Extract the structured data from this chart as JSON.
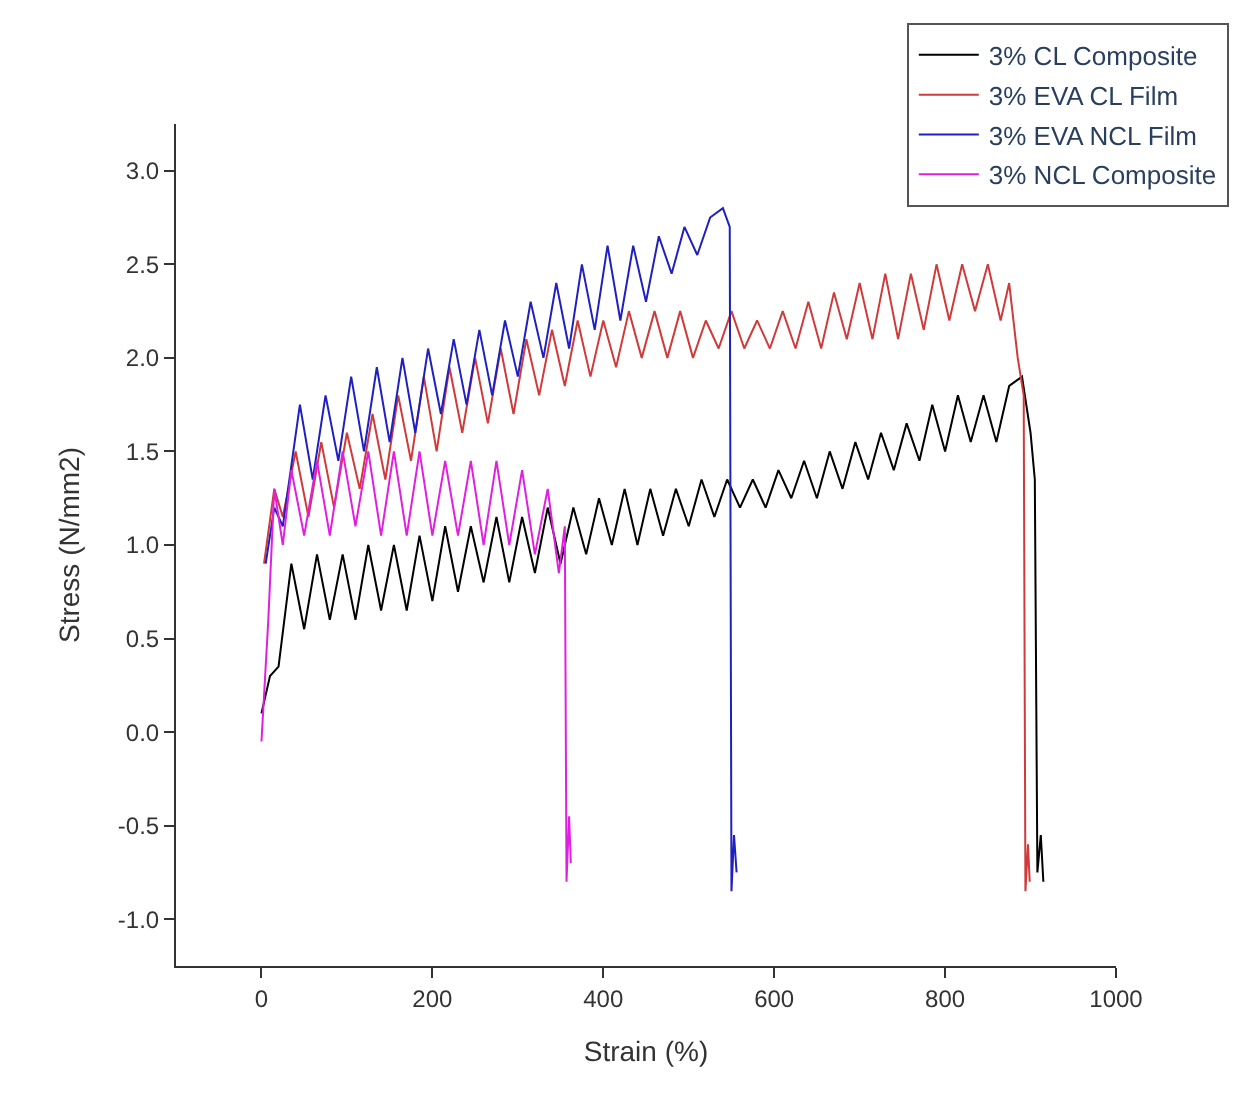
{
  "chart_data": {
    "type": "line",
    "xlabel": "Strain (%)",
    "ylabel": "Stress (N/mm2)",
    "xlim": [
      -100,
      1000
    ],
    "ylim": [
      -1.25,
      3.25
    ],
    "xticks": [
      0,
      200,
      400,
      600,
      800,
      1000
    ],
    "yticks": [
      {
        "value": -1.0,
        "label": "-1.0"
      },
      {
        "value": -0.5,
        "label": "-0.5"
      },
      {
        "value": 0,
        "label": "0.0"
      },
      {
        "value": 0.5,
        "label": "0.5"
      },
      {
        "value": 1.0,
        "label": "1.0"
      },
      {
        "value": 1.5,
        "label": "1.5"
      },
      {
        "value": 2.0,
        "label": "2.0"
      },
      {
        "value": 2.5,
        "label": "2.5"
      },
      {
        "value": 3.0,
        "label": "3.0"
      }
    ],
    "legend": "top right",
    "marker": "none",
    "line_style": "solid",
    "series": [
      {
        "name": "3% CL Composite",
        "color": "#000000",
        "x": [
          0,
          10,
          20,
          35,
          50,
          65,
          80,
          95,
          110,
          125,
          140,
          155,
          170,
          185,
          200,
          215,
          230,
          245,
          260,
          275,
          290,
          305,
          320,
          335,
          350,
          365,
          380,
          395,
          410,
          425,
          440,
          455,
          470,
          485,
          500,
          515,
          530,
          545,
          560,
          575,
          590,
          605,
          620,
          635,
          650,
          665,
          680,
          695,
          710,
          725,
          740,
          755,
          770,
          785,
          800,
          815,
          830,
          845,
          860,
          875,
          890,
          900,
          905,
          908,
          912,
          915
        ],
        "values": [
          0.1,
          0.3,
          0.35,
          0.9,
          0.55,
          0.95,
          0.6,
          0.95,
          0.6,
          1.0,
          0.65,
          1.0,
          0.65,
          1.05,
          0.7,
          1.1,
          0.75,
          1.1,
          0.8,
          1.15,
          0.8,
          1.15,
          0.85,
          1.2,
          0.9,
          1.2,
          0.95,
          1.25,
          1.0,
          1.3,
          1.0,
          1.3,
          1.05,
          1.3,
          1.1,
          1.35,
          1.15,
          1.35,
          1.2,
          1.35,
          1.2,
          1.4,
          1.25,
          1.45,
          1.25,
          1.5,
          1.3,
          1.55,
          1.35,
          1.6,
          1.4,
          1.65,
          1.45,
          1.75,
          1.5,
          1.8,
          1.55,
          1.8,
          1.55,
          1.85,
          1.9,
          1.6,
          1.35,
          -0.75,
          -0.55,
          -0.8
        ]
      },
      {
        "name": "3% EVA CL Film",
        "color": "#d03a3a",
        "x": [
          3,
          15,
          25,
          40,
          55,
          70,
          85,
          100,
          115,
          130,
          145,
          160,
          175,
          190,
          205,
          220,
          235,
          250,
          265,
          280,
          295,
          310,
          325,
          340,
          355,
          370,
          385,
          400,
          415,
          430,
          445,
          460,
          475,
          490,
          505,
          520,
          535,
          550,
          565,
          580,
          595,
          610,
          625,
          640,
          655,
          670,
          685,
          700,
          715,
          730,
          745,
          760,
          775,
          790,
          805,
          820,
          835,
          850,
          865,
          875,
          885,
          892,
          894,
          897,
          899
        ],
        "values": [
          0.9,
          1.3,
          1.15,
          1.5,
          1.15,
          1.55,
          1.2,
          1.6,
          1.3,
          1.7,
          1.35,
          1.8,
          1.45,
          1.9,
          1.5,
          1.95,
          1.6,
          2.0,
          1.65,
          2.05,
          1.7,
          2.1,
          1.8,
          2.15,
          1.85,
          2.2,
          1.9,
          2.2,
          1.95,
          2.25,
          2.0,
          2.25,
          2.0,
          2.25,
          2.0,
          2.2,
          2.05,
          2.25,
          2.05,
          2.2,
          2.05,
          2.25,
          2.05,
          2.3,
          2.05,
          2.35,
          2.1,
          2.4,
          2.1,
          2.45,
          2.1,
          2.45,
          2.15,
          2.5,
          2.2,
          2.5,
          2.25,
          2.5,
          2.2,
          2.4,
          2.0,
          1.8,
          -0.85,
          -0.6,
          -0.8
        ]
      },
      {
        "name": "3% EVA NCL Film",
        "color": "#2020c0",
        "x": [
          5,
          15,
          25,
          45,
          60,
          75,
          90,
          105,
          120,
          135,
          150,
          165,
          180,
          195,
          210,
          225,
          240,
          255,
          270,
          285,
          300,
          315,
          330,
          345,
          360,
          375,
          390,
          405,
          420,
          435,
          450,
          465,
          480,
          495,
          510,
          525,
          540,
          548,
          550,
          553,
          556
        ],
        "values": [
          0.9,
          1.2,
          1.1,
          1.75,
          1.35,
          1.8,
          1.45,
          1.9,
          1.5,
          1.95,
          1.55,
          2.0,
          1.6,
          2.05,
          1.7,
          2.1,
          1.75,
          2.15,
          1.8,
          2.2,
          1.9,
          2.3,
          2.0,
          2.4,
          2.05,
          2.5,
          2.15,
          2.6,
          2.2,
          2.6,
          2.3,
          2.65,
          2.45,
          2.7,
          2.55,
          2.75,
          2.8,
          2.7,
          -0.85,
          -0.55,
          -0.75
        ]
      },
      {
        "name": "3% NCL Composite",
        "color": "#e020e0",
        "x": [
          0,
          8,
          15,
          25,
          35,
          50,
          65,
          80,
          95,
          110,
          125,
          140,
          155,
          170,
          185,
          200,
          215,
          230,
          245,
          260,
          275,
          290,
          305,
          320,
          335,
          348,
          355,
          357,
          360,
          362
        ],
        "values": [
          -0.05,
          0.6,
          1.3,
          1.0,
          1.4,
          1.05,
          1.45,
          1.05,
          1.5,
          1.1,
          1.5,
          1.05,
          1.5,
          1.05,
          1.5,
          1.05,
          1.45,
          1.05,
          1.45,
          1.0,
          1.45,
          1.0,
          1.4,
          0.95,
          1.3,
          0.85,
          1.1,
          -0.8,
          -0.45,
          -0.7
        ]
      }
    ]
  }
}
